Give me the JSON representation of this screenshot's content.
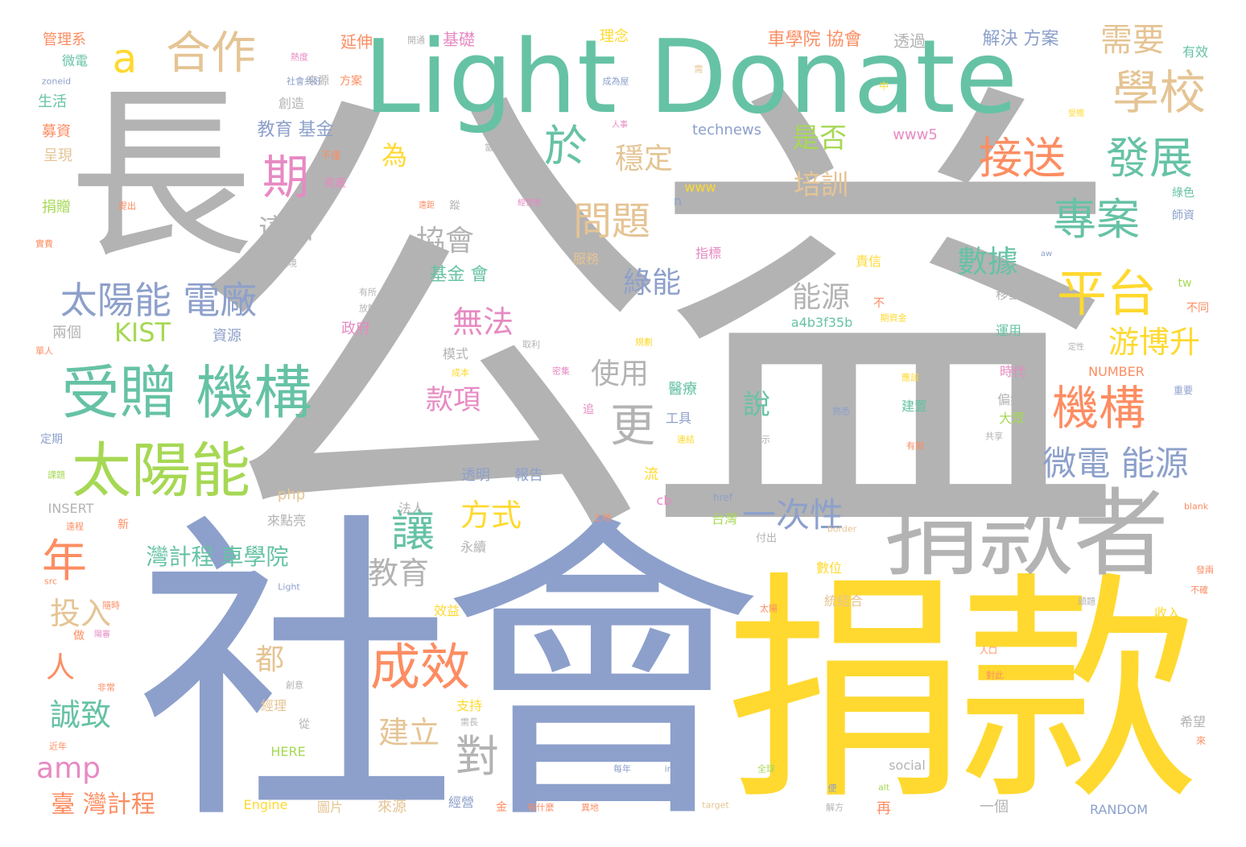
{
  "palette": {
    "gray": "#b3b3b3",
    "blue": "#8da0cb",
    "yellow": "#ffd92f",
    "teal": "#66c2a5",
    "orange": "#fc8d62",
    "green": "#a6d854",
    "pink": "#e78ac3",
    "tan": "#e5c494"
  },
  "words": [
    {
      "text": "公益",
      "color": "gray",
      "size": 600
    },
    {
      "text": "社會",
      "color": "blue",
      "size": 400
    },
    {
      "text": "捐款",
      "color": "yellow",
      "size": 300
    },
    {
      "text": "長",
      "color": "gray",
      "size": 230
    },
    {
      "text": "Light Donate",
      "color": "teal",
      "size": 130
    },
    {
      "text": "捐款者",
      "color": "gray",
      "size": 120
    },
    {
      "text": "太陽能",
      "color": "green",
      "size": 75
    },
    {
      "text": "受贈 機構",
      "color": "teal",
      "size": 75
    },
    {
      "text": "成效",
      "color": "orange",
      "size": 64
    },
    {
      "text": "學校",
      "color": "tan",
      "size": 62
    },
    {
      "text": "平台",
      "color": "yellow",
      "size": 62
    },
    {
      "text": "機構",
      "color": "orange",
      "size": 62
    },
    {
      "text": "合作",
      "color": "tan",
      "size": 62
    },
    {
      "text": "接送",
      "color": "orange",
      "size": 58
    },
    {
      "text": "發展",
      "color": "teal",
      "size": 58
    },
    {
      "text": "專案",
      "color": "teal",
      "size": 58
    },
    {
      "text": "太陽能 電廠",
      "color": "blue",
      "size": 50
    },
    {
      "text": "期",
      "color": "pink",
      "size": 60
    },
    {
      "text": "年",
      "color": "orange",
      "size": 60
    },
    {
      "text": "讓",
      "color": "teal",
      "size": 58
    },
    {
      "text": "對",
      "color": "gray",
      "size": 58
    },
    {
      "text": "更",
      "color": "gray",
      "size": 58
    },
    {
      "text": "於",
      "color": "teal",
      "size": 58
    },
    {
      "text": "問題",
      "color": "tan",
      "size": 52
    },
    {
      "text": "微電 能源",
      "color": "blue",
      "size": 46
    },
    {
      "text": "一次性",
      "color": "blue",
      "size": 46
    },
    {
      "text": "a",
      "color": "yellow",
      "size": 50
    },
    {
      "text": "需要",
      "color": "tan",
      "size": 46
    },
    {
      "text": "游博升",
      "color": "yellow",
      "size": 42
    },
    {
      "text": "數據",
      "color": "teal",
      "size": 42
    },
    {
      "text": "無法",
      "color": "pink",
      "size": 42
    },
    {
      "text": "方式",
      "color": "yellow",
      "size": 42
    },
    {
      "text": "教育",
      "color": "gray",
      "size": 42
    },
    {
      "text": "投入",
      "color": "tan",
      "size": 42
    },
    {
      "text": "建立",
      "color": "tan",
      "size": 42
    },
    {
      "text": "誠致",
      "color": "teal",
      "size": 42
    },
    {
      "text": "amp",
      "color": "pink",
      "size": 40
    },
    {
      "text": "人",
      "color": "orange",
      "size": 40
    },
    {
      "text": "都",
      "color": "tan",
      "size": 40
    },
    {
      "text": "使用",
      "color": "gray",
      "size": 40
    },
    {
      "text": "綠能",
      "color": "blue",
      "size": 40
    },
    {
      "text": "能源",
      "color": "gray",
      "size": 40
    },
    {
      "text": "協會",
      "color": "gray",
      "size": 40
    },
    {
      "text": "這個",
      "color": "gray",
      "size": 38
    },
    {
      "text": "款項",
      "color": "pink",
      "size": 38
    },
    {
      "text": "穩定",
      "color": "tan",
      "size": 40
    },
    {
      "text": "是否",
      "color": "green",
      "size": 38
    },
    {
      "text": "培訓",
      "color": "tan",
      "size": 38
    },
    {
      "text": "說",
      "color": "teal",
      "size": 38
    },
    {
      "text": "為",
      "color": "yellow",
      "size": 36
    },
    {
      "text": "KIST",
      "color": "green",
      "size": 36
    },
    {
      "text": "臺 灣計程",
      "color": "orange",
      "size": 34
    },
    {
      "text": "灣計程 車學院",
      "color": "teal",
      "size": 30
    },
    {
      "text": "車學院 協會",
      "color": "orange",
      "size": 24
    },
    {
      "text": "解決 方案",
      "color": "blue",
      "size": 24
    },
    {
      "text": "教育 基金",
      "color": "blue",
      "size": 24
    },
    {
      "text": "基金 會",
      "color": "teal",
      "size": 24
    },
    {
      "text": "延伸",
      "color": "orange",
      "size": 22
    },
    {
      "text": "基礎",
      "color": "pink",
      "size": 22
    },
    {
      "text": "理念",
      "color": "yellow",
      "size": 20
    },
    {
      "text": "透過",
      "color": "gray",
      "size": 22
    },
    {
      "text": "管理系",
      "color": "orange",
      "size": 20
    },
    {
      "text": "微電",
      "color": "teal",
      "size": 18
    },
    {
      "text": "生活",
      "color": "teal",
      "size": 20
    },
    {
      "text": "募資",
      "color": "orange",
      "size": 20
    },
    {
      "text": "呈現",
      "color": "tan",
      "size": 20
    },
    {
      "text": "捐贈",
      "color": "green",
      "size": 20
    },
    {
      "text": "兩個",
      "color": "gray",
      "size": 20
    },
    {
      "text": "資源",
      "color": "blue",
      "size": 20
    },
    {
      "text": "政府",
      "color": "pink",
      "size": 20
    },
    {
      "text": "模式",
      "color": "gray",
      "size": 18
    },
    {
      "text": "醫療",
      "color": "teal",
      "size": 20
    },
    {
      "text": "工具",
      "color": "blue",
      "size": 18
    },
    {
      "text": "服務",
      "color": "tan",
      "size": 18
    },
    {
      "text": "指標",
      "color": "pink",
      "size": 18
    },
    {
      "text": "責信",
      "color": "yellow",
      "size": 18
    },
    {
      "text": "移動",
      "color": "gray",
      "size": 18
    },
    {
      "text": "運用",
      "color": "teal",
      "size": 18
    },
    {
      "text": "時代",
      "color": "pink",
      "size": 18
    },
    {
      "text": "偏鄉",
      "color": "gray",
      "size": 18
    },
    {
      "text": "大眾",
      "color": "green",
      "size": 18
    },
    {
      "text": "建置",
      "color": "teal",
      "size": 18
    },
    {
      "text": "有效",
      "color": "teal",
      "size": 18
    },
    {
      "text": "綠色",
      "color": "teal",
      "size": 16
    },
    {
      "text": "師資",
      "color": "blue",
      "size": 16
    },
    {
      "text": "不同",
      "color": "orange",
      "size": 16
    },
    {
      "text": "重要",
      "color": "blue",
      "size": 12
    },
    {
      "text": "透明",
      "color": "blue",
      "size": 20
    },
    {
      "text": "報告",
      "color": "blue",
      "size": 20
    },
    {
      "text": "法人",
      "color": "gray",
      "size": 18
    },
    {
      "text": "流",
      "color": "yellow",
      "size": 20
    },
    {
      "text": "台灣",
      "color": "green",
      "size": 18
    },
    {
      "text": "永續",
      "color": "gray",
      "size": 18
    },
    {
      "text": "數位",
      "color": "yellow",
      "size": 18
    },
    {
      "text": "統結合",
      "color": "tan",
      "size": 18
    },
    {
      "text": "收入",
      "color": "yellow",
      "size": 18
    },
    {
      "text": "效益",
      "color": "yellow",
      "size": 18
    },
    {
      "text": "支持",
      "color": "yellow",
      "size": 18
    },
    {
      "text": "經理",
      "color": "tan",
      "size": 18
    },
    {
      "text": "從",
      "color": "gray",
      "size": 16
    },
    {
      "text": "經營",
      "color": "blue",
      "size": 18
    },
    {
      "text": "圖片",
      "color": "tan",
      "size": 18
    },
    {
      "text": "來源",
      "color": "tan",
      "size": 20
    },
    {
      "text": "再",
      "color": "orange",
      "size": 20
    },
    {
      "text": "一個",
      "color": "gray",
      "size": 20
    },
    {
      "text": "希望",
      "color": "gray",
      "size": 18
    },
    {
      "text": "來點亮",
      "color": "gray",
      "size": 18
    },
    {
      "text": "新",
      "color": "orange",
      "size": 16
    },
    {
      "text": "創造",
      "color": "gray",
      "size": 18
    },
    {
      "text": "來源",
      "color": "gray",
      "size": 16
    },
    {
      "text": "定期",
      "color": "blue",
      "size": 16
    },
    {
      "text": "做",
      "color": "orange",
      "size": 16
    },
    {
      "text": "追",
      "color": "pink",
      "size": 16
    },
    {
      "text": "中",
      "color": "yellow",
      "size": 14
    },
    {
      "text": "不",
      "color": "orange",
      "size": 16
    },
    {
      "text": "方案",
      "color": "orange",
      "size": 16
    },
    {
      "text": "資產",
      "color": "pink",
      "size": 16
    },
    {
      "text": "不僅",
      "color": "orange",
      "size": 14
    },
    {
      "text": "將",
      "color": "gray",
      "size": 14
    },
    {
      "text": "www",
      "color": "yellow",
      "size": 16
    },
    {
      "text": "n",
      "color": "blue",
      "size": 16
    },
    {
      "text": "www5",
      "color": "pink",
      "size": 20
    },
    {
      "text": "technews",
      "color": "blue",
      "size": 20
    },
    {
      "text": "delivery",
      "color": "gray",
      "size": 18
    },
    {
      "text": "a4b3f35b",
      "color": "teal",
      "size": 18
    },
    {
      "text": "NUMBER",
      "color": "orange",
      "size": 18
    },
    {
      "text": "tw",
      "color": "green",
      "size": 16
    },
    {
      "text": "php",
      "color": "tan",
      "size": 20
    },
    {
      "text": "INSERT",
      "color": "gray",
      "size": 18
    },
    {
      "text": "cb",
      "color": "pink",
      "size": 18
    },
    {
      "text": "HERE",
      "color": "green",
      "size": 18
    },
    {
      "text": "Engine",
      "color": "yellow",
      "size": 18
    },
    {
      "text": "social",
      "color": "gray",
      "size": 18
    },
    {
      "text": "RANDOM",
      "color": "blue",
      "size": 18
    },
    {
      "text": "href",
      "color": "blue",
      "size": 14
    },
    {
      "text": "Light",
      "color": "blue",
      "size": 12
    },
    {
      "text": "src",
      "color": "orange",
      "size": 12
    },
    {
      "text": "img",
      "color": "blue",
      "size": 12
    },
    {
      "text": "alt",
      "color": "green",
      "size": 12
    },
    {
      "text": "target",
      "color": "tan",
      "size": 12
    },
    {
      "text": "blank",
      "color": "orange",
      "size": 12
    },
    {
      "text": "border",
      "color": "tan",
      "size": 12
    },
    {
      "text": "ck",
      "color": "gray",
      "size": 12
    },
    {
      "text": "aw",
      "color": "blue",
      "size": 10
    },
    {
      "text": "zoneid",
      "color": "blue",
      "size": 12
    },
    {
      "text": "開通",
      "color": "gray",
      "size": 12
    },
    {
      "text": "熱度",
      "color": "pink",
      "size": 12
    },
    {
      "text": "社會共好",
      "color": "blue",
      "size": 12
    },
    {
      "text": "成為屋",
      "color": "blue",
      "size": 12
    },
    {
      "text": "需",
      "color": "tan",
      "size": 12
    },
    {
      "text": "受贈",
      "color": "yellow",
      "size": 10
    },
    {
      "text": "人事",
      "color": "pink",
      "size": 10
    },
    {
      "text": "當開",
      "color": "gray",
      "size": 12
    },
    {
      "text": "經營者",
      "color": "pink",
      "size": 10
    },
    {
      "text": "遠距",
      "color": "orange",
      "size": 10
    },
    {
      "text": "蹤",
      "color": "gray",
      "size": 14
    },
    {
      "text": "提出",
      "color": "orange",
      "size": 12
    },
    {
      "text": "實費",
      "color": "orange",
      "size": 12
    },
    {
      "text": "環境",
      "color": "gray",
      "size": 12
    },
    {
      "text": "有所",
      "color": "gray",
      "size": 12
    },
    {
      "text": "放膽",
      "color": "gray",
      "size": 12
    },
    {
      "text": "期資金",
      "color": "yellow",
      "size": 12
    },
    {
      "text": "取利",
      "color": "gray",
      "size": 12
    },
    {
      "text": "規劃",
      "color": "yellow",
      "size": 12
    },
    {
      "text": "定性",
      "color": "gray",
      "size": 10
    },
    {
      "text": "單人",
      "color": "orange",
      "size": 12
    },
    {
      "text": "成本",
      "color": "yellow",
      "size": 12
    },
    {
      "text": "密集",
      "color": "pink",
      "size": 12
    },
    {
      "text": "重新",
      "color": "gray",
      "size": 12
    },
    {
      "text": "應該",
      "color": "yellow",
      "size": 12
    },
    {
      "text": "熟悉",
      "color": "blue",
      "size": 12
    },
    {
      "text": "有限",
      "color": "orange",
      "size": 12
    },
    {
      "text": "表示",
      "color": "gray",
      "size": 12
    },
    {
      "text": "連結",
      "color": "yellow",
      "size": 12
    },
    {
      "text": "共享",
      "color": "gray",
      "size": 12
    },
    {
      "text": "課題",
      "color": "green",
      "size": 12
    },
    {
      "text": "土地",
      "color": "orange",
      "size": 12
    },
    {
      "text": "付出",
      "color": "gray",
      "size": 14
    },
    {
      "text": "遠程",
      "color": "orange",
      "size": 12
    },
    {
      "text": "發兩",
      "color": "orange",
      "size": 12
    },
    {
      "text": "不確",
      "color": "orange",
      "size": 12
    },
    {
      "text": "隨時",
      "color": "orange",
      "size": 12
    },
    {
      "text": "太陽",
      "color": "orange",
      "size": 12
    },
    {
      "text": "頭題",
      "color": "gray",
      "size": 12
    },
    {
      "text": "人口",
      "color": "orange",
      "size": 12
    },
    {
      "text": "對此",
      "color": "orange",
      "size": 12
    },
    {
      "text": "疑慮",
      "color": "yellow",
      "size": 12
    },
    {
      "text": "創意",
      "color": "gray",
      "size": 12
    },
    {
      "text": "需長",
      "color": "gray",
      "size": 12
    },
    {
      "text": "陽審",
      "color": "pink",
      "size": 10
    },
    {
      "text": "非常",
      "color": "orange",
      "size": 12
    },
    {
      "text": "近年",
      "color": "orange",
      "size": 12
    },
    {
      "text": "每年",
      "color": "blue",
      "size": 12
    },
    {
      "text": "全球",
      "color": "green",
      "size": 12
    },
    {
      "text": "便",
      "color": "blue",
      "size": 12
    },
    {
      "text": "解方",
      "color": "gray",
      "size": 12
    },
    {
      "text": "有什麼",
      "color": "orange",
      "size": 12
    },
    {
      "text": "異地",
      "color": "orange",
      "size": 12
    },
    {
      "text": "金",
      "color": "orange",
      "size": 16
    },
    {
      "text": "來",
      "color": "orange",
      "size": 14
    }
  ]
}
